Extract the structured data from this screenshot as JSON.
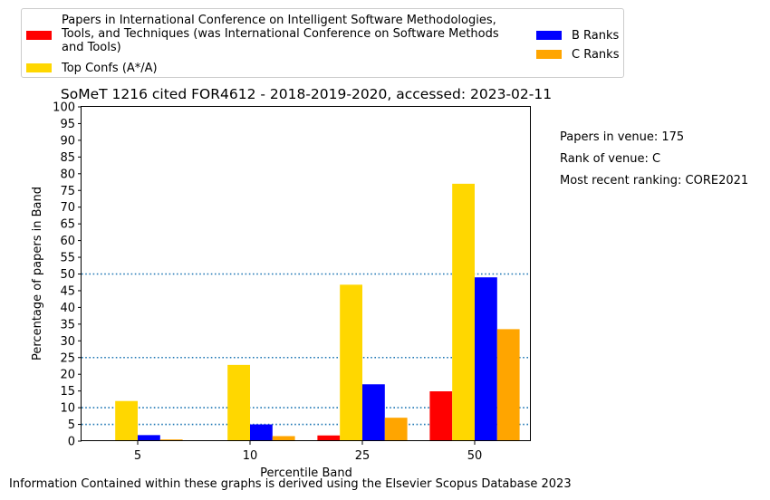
{
  "chart_data": {
    "type": "bar",
    "title": "SoMeT 1216 cited FOR4612 - 2018-2019-2020, accessed: 2023-02-11",
    "xlabel": "Percentile Band",
    "ylabel": "Percentage of papers in Band",
    "categories": [
      "5",
      "10",
      "25",
      "50"
    ],
    "ylim": [
      0,
      100
    ],
    "yticks": [
      0,
      5,
      10,
      15,
      20,
      25,
      30,
      35,
      40,
      45,
      50,
      55,
      60,
      65,
      70,
      75,
      80,
      85,
      90,
      95,
      100
    ],
    "reference_lines": [
      5,
      10,
      25,
      50
    ],
    "series": [
      {
        "name": "Papers in International Conference on Intelligent Software Methodologies, Tools, and Techniques (was International Conference on Software Methods and Tools)",
        "color": "#ff0000",
        "values": [
          0,
          0,
          1.7,
          14.9
        ]
      },
      {
        "name": "Top Confs (A*/A)",
        "color": "#ffd700",
        "values": [
          12,
          22.8,
          46.8,
          77
        ]
      },
      {
        "name": "B Ranks",
        "color": "#0000ff",
        "values": [
          1.8,
          5,
          17,
          49
        ]
      },
      {
        "name": "C Ranks",
        "color": "#ffa500",
        "values": [
          0.5,
          1.5,
          7,
          33.5
        ]
      }
    ],
    "legend_position": "top"
  },
  "side_info": [
    "Papers in venue: 175",
    "Rank of venue: C",
    "Most recent ranking: CORE2021"
  ],
  "footer": "Information Contained within these graphs is derived using the Elsevier Scopus Database 2023"
}
